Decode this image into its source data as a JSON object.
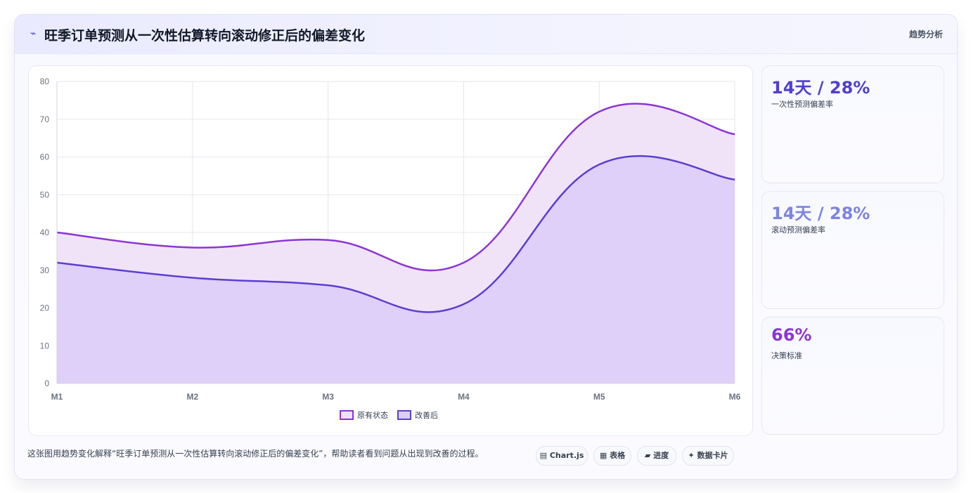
{
  "header": {
    "icon": "chart-line-icon",
    "title": "旺季订单预测从一次性估算转向滚动修正后的偏差变化",
    "tag": "趋势分析"
  },
  "chart_data": {
    "type": "area",
    "categories": [
      "M1",
      "M2",
      "M3",
      "M4",
      "M5",
      "M6"
    ],
    "ylim": [
      0,
      80
    ],
    "yticks": [
      0,
      10,
      20,
      30,
      40,
      50,
      60,
      70,
      80
    ],
    "grid": true,
    "legend_position": "bottom",
    "series": [
      {
        "name": "原有状态",
        "values": [
          40,
          36,
          38,
          32,
          72,
          66
        ],
        "color": "#8b35d6",
        "fill": "#efe2f8"
      },
      {
        "name": "改善后",
        "values": [
          32,
          28,
          26,
          21,
          58,
          54
        ],
        "color": "#5b3fd1",
        "fill": "#dccff8"
      }
    ]
  },
  "stats": [
    {
      "value": "14天 / 28%",
      "label": "一次性预测偏差率",
      "color": "#4f3fd1"
    },
    {
      "value": "14天 / 28%",
      "label": "滚动预测偏差率",
      "color": "#7c83e3"
    },
    {
      "value": "66%",
      "label": "决策标准",
      "color": "#8b35d6"
    }
  ],
  "footer": {
    "text": "这张图用趋势变化解释“旺季订单预测从一次性估算转向滚动修正后的偏差变化”，帮助读者看到问题从出现到改善的过程。",
    "pills": [
      {
        "icon": "▤",
        "label": "Chart.js"
      },
      {
        "icon": "▦",
        "label": "表格"
      },
      {
        "icon": "▰",
        "label": "进度"
      },
      {
        "icon": "✦",
        "label": "数据卡片"
      }
    ]
  }
}
